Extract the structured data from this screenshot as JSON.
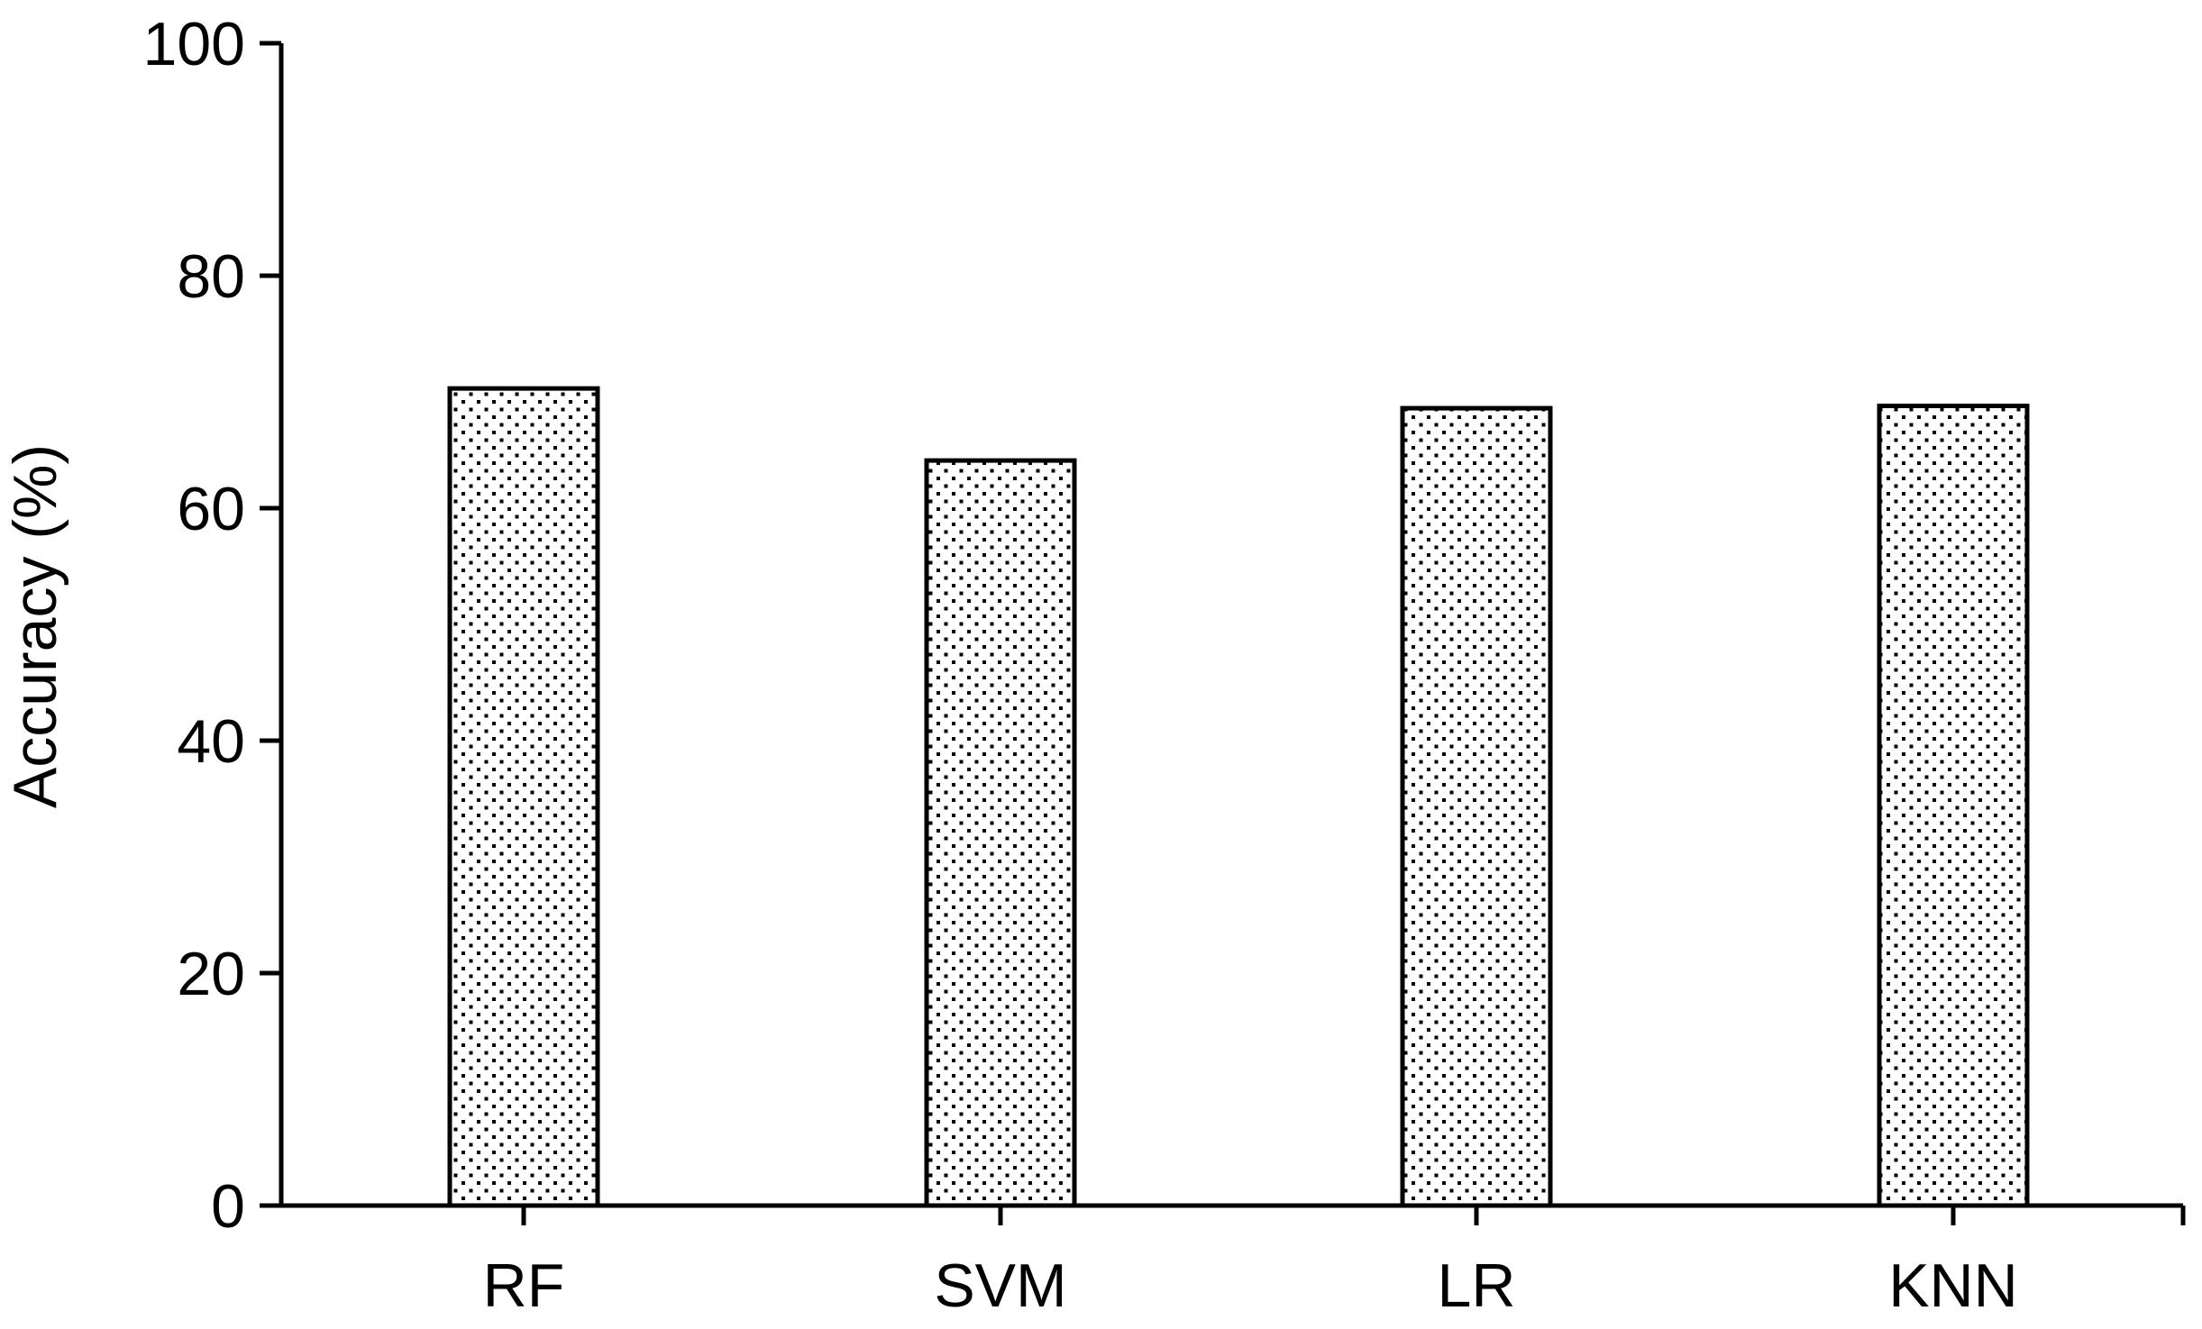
{
  "chart_data": {
    "type": "bar",
    "title": "",
    "xlabel": "",
    "ylabel": "Accuracy (%)",
    "categories": [
      "RF",
      "SVM",
      "LR",
      "KNN"
    ],
    "values": [
      70.3,
      64.1,
      68.6,
      68.8
    ],
    "ylim": [
      0,
      100
    ],
    "yticks": [
      "0",
      "20",
      "40",
      "60",
      "80",
      "100"
    ],
    "grid": false,
    "legend": "none",
    "bar_fill": "dotted",
    "colors": {
      "axis": "#000000",
      "bar_edge": "#000000",
      "bar_dot": "#000000",
      "background": "#ffffff"
    }
  }
}
